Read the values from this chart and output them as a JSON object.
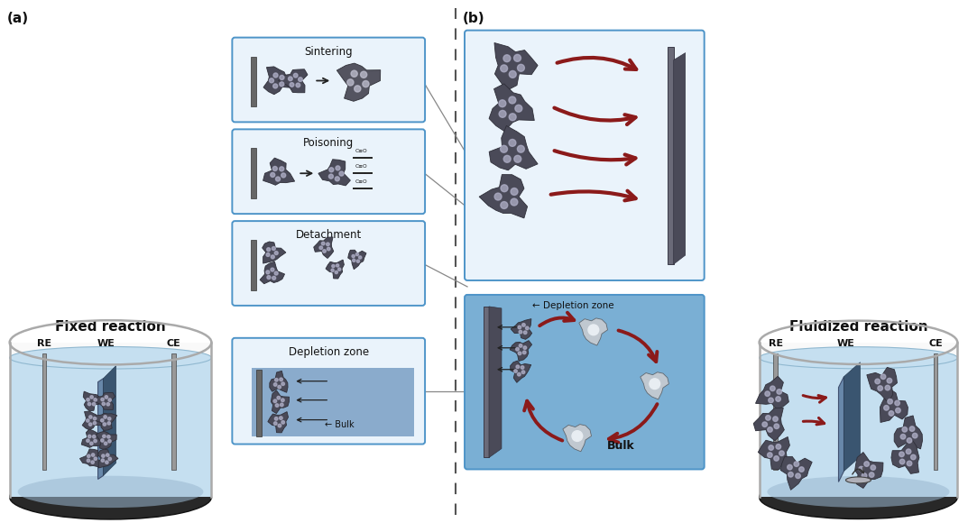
{
  "fig_width": 10.73,
  "fig_height": 5.9,
  "bg_color": "#ffffff",
  "panel_a_title": "Fixed reaction",
  "panel_b_title": "Fluidized reaction",
  "panel_a_label": "(a)",
  "panel_b_label": "(b)",
  "box1_title": "Sintering",
  "box2_title": "Poisoning",
  "box3_title": "Detachment",
  "box4_title": "Depletion zone",
  "bulk_label": "Bulk",
  "depletion_label": "Depletion zone",
  "box_outline": "#4d94c8",
  "box_fill": "#eaf3fb",
  "depletion_fill": "#7aafd4",
  "red_arrow": "#8b1a1a",
  "black_arrow": "#222222",
  "water_color": "#c5dff0",
  "water_dark": "#8eb8d8",
  "beaker_wall": "#999999",
  "beaker_base": "#333333",
  "electrode_gray": "#888888",
  "electrode_dark": "#555555",
  "we_plate_face": "#6080a0",
  "we_plate_side": "#3a5570",
  "nano_dark": "#2e2e38",
  "nano_mid": "#4a4a58",
  "nano_light": "#b0b0c8",
  "dashed_color": "#555555"
}
